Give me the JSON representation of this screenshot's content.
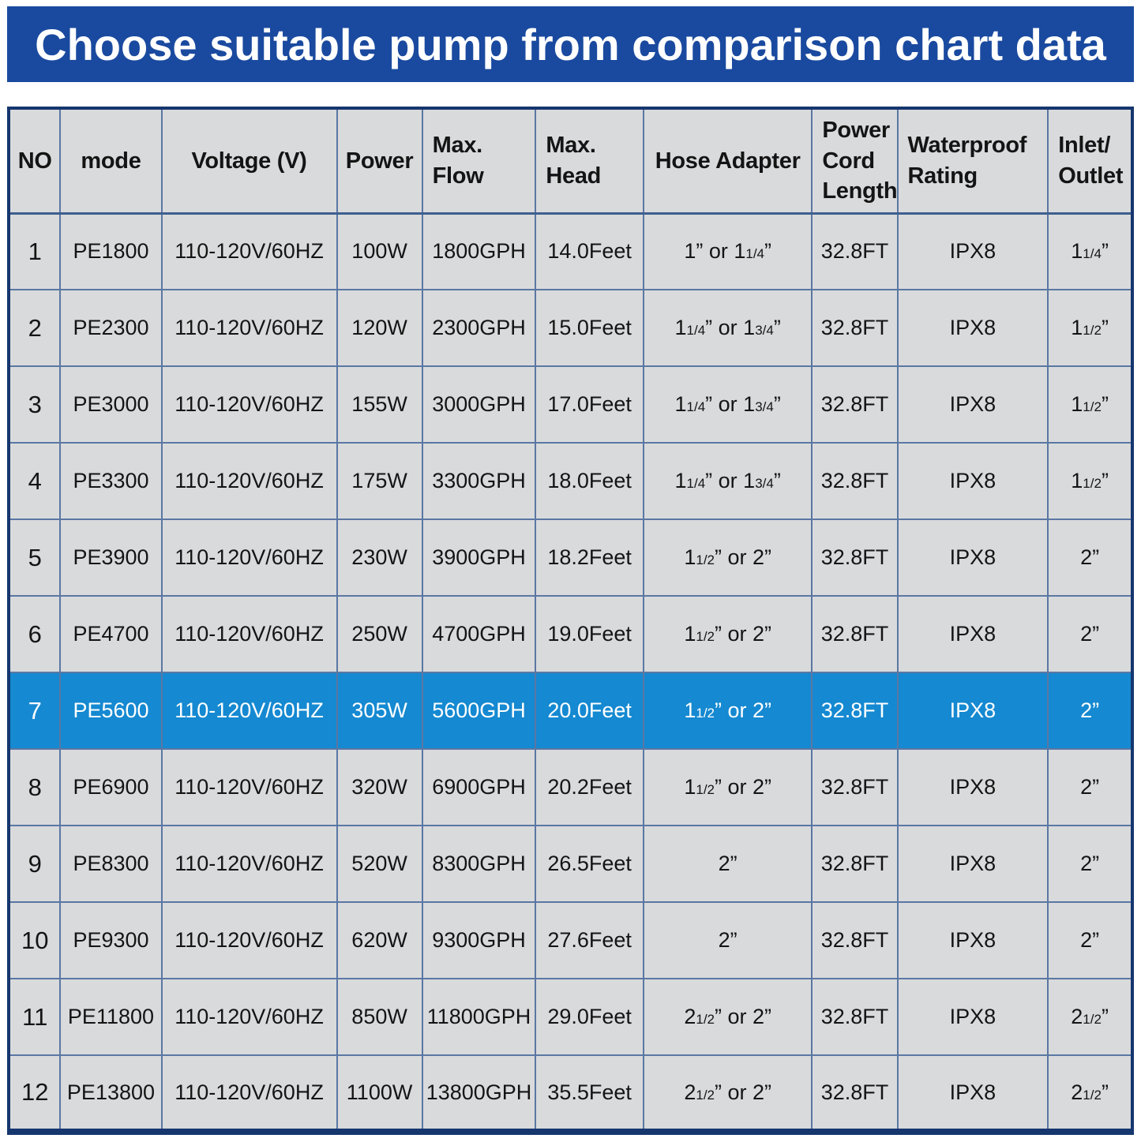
{
  "banner": {
    "title": "Choose suitable pump from comparison chart data"
  },
  "colors": {
    "banner_bg": "#1a4a9f",
    "banner_text": "#ffffff",
    "cell_bg": "#d9dadc",
    "grid_line": "#5a77a3",
    "outer_border": "#16366e",
    "highlight_row_bg": "#1589d1",
    "highlight_row_text": "#ffffff",
    "body_text": "#141414"
  },
  "chart_data": {
    "type": "table",
    "title": "Choose suitable pump from comparison chart data",
    "legend_position": "none",
    "grid": true,
    "columns": [
      {
        "key": "no",
        "label": "NO"
      },
      {
        "key": "mode",
        "label": "mode"
      },
      {
        "key": "voltage",
        "label": "Voltage (V)"
      },
      {
        "key": "power",
        "label": "Power"
      },
      {
        "key": "max_flow",
        "label": "Max.\nFlow"
      },
      {
        "key": "max_head",
        "label": "Max.\nHead"
      },
      {
        "key": "hose_adapter",
        "label": "Hose Adapter"
      },
      {
        "key": "power_cord_length",
        "label": "Power\nCord\nLength"
      },
      {
        "key": "waterproof_rating",
        "label": "Waterproof\nRating"
      },
      {
        "key": "inlet_outlet",
        "label": "Inlet/\nOutlet"
      }
    ],
    "rows": [
      {
        "no": "1",
        "mode": "PE1800",
        "voltage": "110-120V/60HZ",
        "power": "100W",
        "max_flow": "1800GPH",
        "max_head": "14.0Feet",
        "hose_adapter": "1” or 1¼”",
        "power_cord_length": "32.8FT",
        "waterproof_rating": "IPX8",
        "inlet_outlet": "1¼”",
        "highlighted": false
      },
      {
        "no": "2",
        "mode": "PE2300",
        "voltage": "110-120V/60HZ",
        "power": "120W",
        "max_flow": "2300GPH",
        "max_head": "15.0Feet",
        "hose_adapter": "1¼” or 1¾”",
        "power_cord_length": "32.8FT",
        "waterproof_rating": "IPX8",
        "inlet_outlet": "1½”",
        "highlighted": false
      },
      {
        "no": "3",
        "mode": "PE3000",
        "voltage": "110-120V/60HZ",
        "power": "155W",
        "max_flow": "3000GPH",
        "max_head": "17.0Feet",
        "hose_adapter": "1¼” or 1¾”",
        "power_cord_length": "32.8FT",
        "waterproof_rating": "IPX8",
        "inlet_outlet": "1½”",
        "highlighted": false
      },
      {
        "no": "4",
        "mode": "PE3300",
        "voltage": "110-120V/60HZ",
        "power": "175W",
        "max_flow": "3300GPH",
        "max_head": "18.0Feet",
        "hose_adapter": "1¼” or 1¾”",
        "power_cord_length": "32.8FT",
        "waterproof_rating": "IPX8",
        "inlet_outlet": "1½”",
        "highlighted": false
      },
      {
        "no": "5",
        "mode": "PE3900",
        "voltage": "110-120V/60HZ",
        "power": "230W",
        "max_flow": "3900GPH",
        "max_head": "18.2Feet",
        "hose_adapter": "1½” or 2”",
        "power_cord_length": "32.8FT",
        "waterproof_rating": "IPX8",
        "inlet_outlet": "2”",
        "highlighted": false
      },
      {
        "no": "6",
        "mode": "PE4700",
        "voltage": "110-120V/60HZ",
        "power": "250W",
        "max_flow": "4700GPH",
        "max_head": "19.0Feet",
        "hose_adapter": "1½” or 2”",
        "power_cord_length": "32.8FT",
        "waterproof_rating": "IPX8",
        "inlet_outlet": "2”",
        "highlighted": false
      },
      {
        "no": "7",
        "mode": "PE5600",
        "voltage": "110-120V/60HZ",
        "power": "305W",
        "max_flow": "5600GPH",
        "max_head": "20.0Feet",
        "hose_adapter": "1½” or 2”",
        "power_cord_length": "32.8FT",
        "waterproof_rating": "IPX8",
        "inlet_outlet": "2”",
        "highlighted": true
      },
      {
        "no": "8",
        "mode": "PE6900",
        "voltage": "110-120V/60HZ",
        "power": "320W",
        "max_flow": "6900GPH",
        "max_head": "20.2Feet",
        "hose_adapter": "1½” or 2”",
        "power_cord_length": "32.8FT",
        "waterproof_rating": "IPX8",
        "inlet_outlet": "2”",
        "highlighted": false
      },
      {
        "no": "9",
        "mode": "PE8300",
        "voltage": "110-120V/60HZ",
        "power": "520W",
        "max_flow": "8300GPH",
        "max_head": "26.5Feet",
        "hose_adapter": "2”",
        "power_cord_length": "32.8FT",
        "waterproof_rating": "IPX8",
        "inlet_outlet": "2”",
        "highlighted": false
      },
      {
        "no": "10",
        "mode": "PE9300",
        "voltage": "110-120V/60HZ",
        "power": "620W",
        "max_flow": "9300GPH",
        "max_head": "27.6Feet",
        "hose_adapter": "2”",
        "power_cord_length": "32.8FT",
        "waterproof_rating": "IPX8",
        "inlet_outlet": "2”",
        "highlighted": false
      },
      {
        "no": "11",
        "mode": "PE11800",
        "voltage": "110-120V/60HZ",
        "power": "850W",
        "max_flow": "11800GPH",
        "max_head": "29.0Feet",
        "hose_adapter": "2½” or 2”",
        "power_cord_length": "32.8FT",
        "waterproof_rating": "IPX8",
        "inlet_outlet": "2½”",
        "highlighted": false
      },
      {
        "no": "12",
        "mode": "PE13800",
        "voltage": "110-120V/60HZ",
        "power": "1100W",
        "max_flow": "13800GPH",
        "max_head": "35.5Feet",
        "hose_adapter": "2½” or 2”",
        "power_cord_length": "32.8FT",
        "waterproof_rating": "IPX8",
        "inlet_outlet": "2½”",
        "highlighted": false
      }
    ]
  }
}
